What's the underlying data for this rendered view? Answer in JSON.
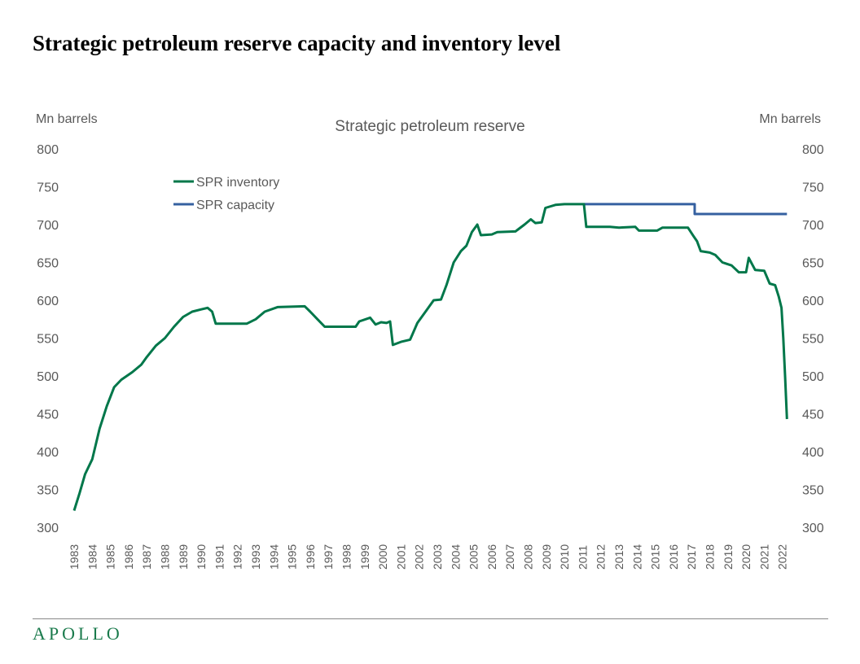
{
  "page_title": "Strategic petroleum reserve capacity and inventory level",
  "brand": "APOLLO",
  "colors": {
    "inventory": "#00774a",
    "capacity": "#3560a0",
    "text": "#595959"
  },
  "chart_data": {
    "type": "line",
    "title": "Strategic petroleum reserve",
    "ylabel_left": "Mn barrels",
    "ylabel_right": "Mn barrels",
    "ylim": [
      300,
      800
    ],
    "yticks": [
      300,
      350,
      400,
      450,
      500,
      550,
      600,
      650,
      700,
      750,
      800
    ],
    "xlim": [
      1983,
      2022.25
    ],
    "xticks": [
      "1983",
      "1984",
      "1985",
      "1986",
      "1987",
      "1988",
      "1989",
      "1990",
      "1991",
      "1992",
      "1993",
      "1994",
      "1995",
      "1996",
      "1997",
      "1998",
      "1999",
      "2000",
      "2001",
      "2002",
      "2003",
      "2004",
      "2005",
      "2006",
      "2007",
      "2008",
      "2009",
      "2010",
      "2011",
      "2012",
      "2013",
      "2014",
      "2015",
      "2016",
      "2017",
      "2018",
      "2019",
      "2020",
      "2021",
      "2022"
    ],
    "grid": false,
    "legend_placement": "top-left",
    "series": [
      {
        "name": "SPR inventory",
        "color": "#00774a",
        "points": [
          [
            1983.0,
            322
          ],
          [
            1983.3,
            345
          ],
          [
            1983.6,
            370
          ],
          [
            1984.0,
            390
          ],
          [
            1984.4,
            430
          ],
          [
            1984.8,
            460
          ],
          [
            1985.2,
            485
          ],
          [
            1985.6,
            495
          ],
          [
            1986.2,
            505
          ],
          [
            1986.7,
            515
          ],
          [
            1987.0,
            525
          ],
          [
            1987.5,
            540
          ],
          [
            1988.0,
            550
          ],
          [
            1988.5,
            565
          ],
          [
            1989.0,
            578
          ],
          [
            1989.5,
            585
          ],
          [
            1990.0,
            588
          ],
          [
            1990.35,
            590
          ],
          [
            1990.6,
            585
          ],
          [
            1990.8,
            569
          ],
          [
            1992.5,
            569
          ],
          [
            1993.0,
            575
          ],
          [
            1993.5,
            585
          ],
          [
            1994.2,
            591
          ],
          [
            1995.7,
            592
          ],
          [
            1996.0,
            585
          ],
          [
            1996.4,
            575
          ],
          [
            1996.8,
            565
          ],
          [
            1998.5,
            565
          ],
          [
            1998.7,
            572
          ],
          [
            1999.3,
            577
          ],
          [
            1999.6,
            568
          ],
          [
            1999.9,
            571
          ],
          [
            2000.2,
            570
          ],
          [
            2000.4,
            572
          ],
          [
            2000.55,
            541
          ],
          [
            2001.0,
            545
          ],
          [
            2001.5,
            548
          ],
          [
            2001.9,
            570
          ],
          [
            2002.5,
            590
          ],
          [
            2002.8,
            600
          ],
          [
            2003.2,
            601
          ],
          [
            2003.5,
            620
          ],
          [
            2003.9,
            650
          ],
          [
            2004.3,
            665
          ],
          [
            2004.6,
            672
          ],
          [
            2004.9,
            690
          ],
          [
            2005.2,
            700
          ],
          [
            2005.4,
            686
          ],
          [
            2006.0,
            687
          ],
          [
            2006.3,
            690
          ],
          [
            2007.3,
            691
          ],
          [
            2007.8,
            700
          ],
          [
            2008.15,
            707
          ],
          [
            2008.4,
            702
          ],
          [
            2008.75,
            703
          ],
          [
            2008.95,
            722
          ],
          [
            2009.5,
            726
          ],
          [
            2010.0,
            727
          ],
          [
            2011.07,
            727
          ],
          [
            2011.2,
            697
          ],
          [
            2012.5,
            697
          ],
          [
            2013.0,
            696
          ],
          [
            2013.9,
            697
          ],
          [
            2014.1,
            692
          ],
          [
            2015.1,
            692
          ],
          [
            2015.4,
            696
          ],
          [
            2016.8,
            696
          ],
          [
            2017.1,
            685
          ],
          [
            2017.3,
            678
          ],
          [
            2017.5,
            665
          ],
          [
            2018.0,
            663
          ],
          [
            2018.3,
            660
          ],
          [
            2018.7,
            650
          ],
          [
            2019.2,
            646
          ],
          [
            2019.6,
            637
          ],
          [
            2020.0,
            637
          ],
          [
            2020.15,
            656
          ],
          [
            2020.5,
            640
          ],
          [
            2021.0,
            639
          ],
          [
            2021.3,
            622
          ],
          [
            2021.6,
            620
          ],
          [
            2021.8,
            605
          ],
          [
            2021.95,
            590
          ],
          [
            2022.05,
            550
          ],
          [
            2022.15,
            500
          ],
          [
            2022.25,
            443
          ]
        ]
      },
      {
        "name": "SPR capacity",
        "color": "#3560a0",
        "points": [
          [
            2011.07,
            727
          ],
          [
            2017.17,
            727
          ],
          [
            2017.17,
            714
          ],
          [
            2022.25,
            714
          ]
        ]
      }
    ]
  }
}
